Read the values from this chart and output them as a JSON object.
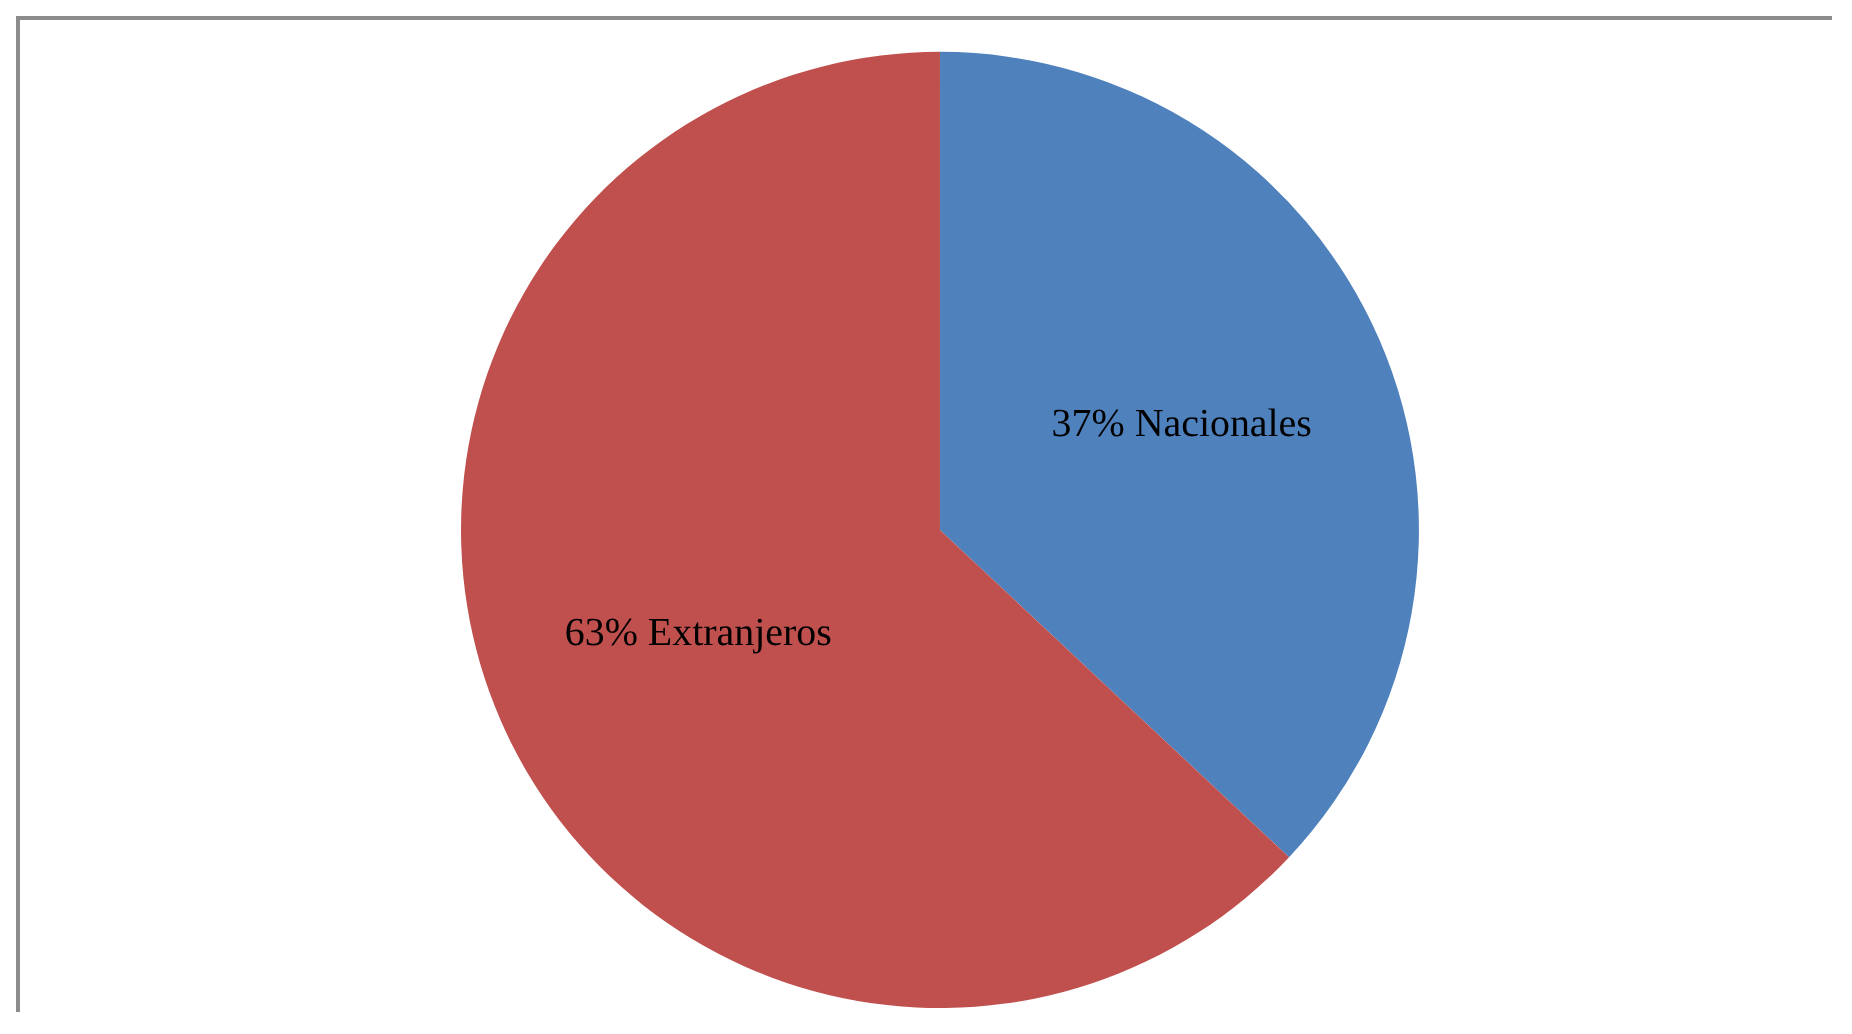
{
  "chart_data": {
    "type": "pie",
    "categories": [
      "Nacionales",
      "Extranjeros"
    ],
    "values": [
      37,
      63
    ],
    "colors": [
      "#4f81bd",
      "#c0504d"
    ],
    "value_labels": [
      "37%",
      "63%"
    ],
    "legend": false
  }
}
